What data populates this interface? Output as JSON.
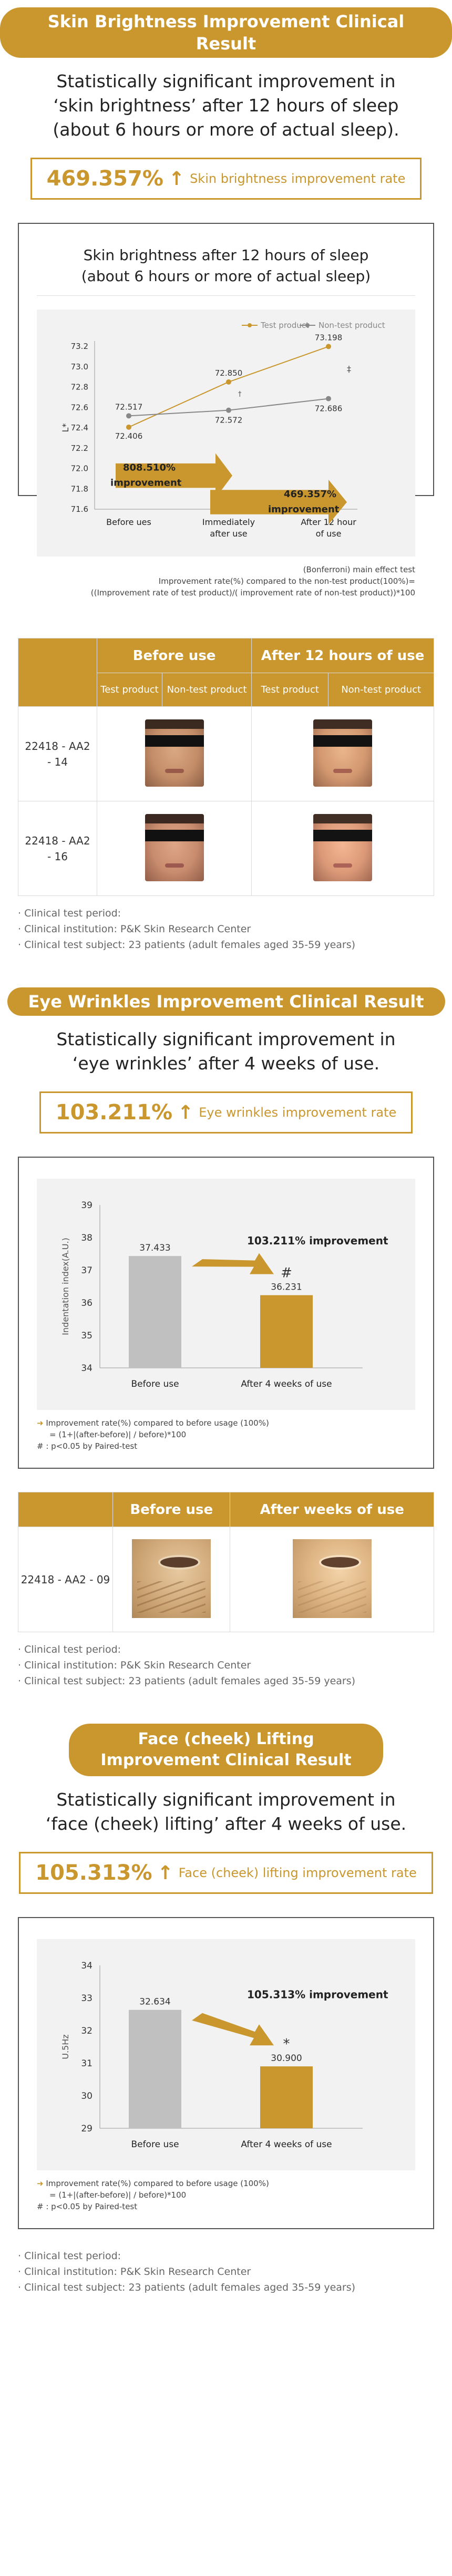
{
  "s1": {
    "title": "Skin Brightness Improvement Clinical Result",
    "lead1": "Statistically significant improvement in",
    "lead2": "‘skin brightness’ after 12 hours of sleep",
    "lead3": "(about 6 hours or more of actual sleep).",
    "rate": "469.357%",
    "rate_arrow": "↑",
    "rate_label": "Skin brightness improvement rate",
    "chart_title1": "Skin brightness after 12 hours of sleep",
    "chart_title2": "(about 6 hours or more of actual sleep)",
    "footnote1": "(Bonferroni) main effect test",
    "footnote2": "Improvement rate(%) compared to the non-test product(100%)=",
    "footnote3": "((Improvement rate of test product)/( improvement rate of non-test product))*100",
    "table": {
      "before": "Before use",
      "after": "After 12 hours of use",
      "sub_test": "Test product",
      "sub_nontest": "Non-test product",
      "rows": [
        {
          "code1": "22418 - AA2",
          "code2": "- 14"
        },
        {
          "code1": "22418 - AA2",
          "code2": "- 16"
        }
      ]
    },
    "bullets": [
      "· Clinical test period:",
      "· Clinical institution: P&K Skin Research Center",
      "· Clinical test subject: 23 patients (adult females aged 35-59 years)"
    ]
  },
  "s2": {
    "title": "Eye Wrinkles Improvement Clinical Result",
    "lead1": "Statistically significant improvement in",
    "lead2": "‘eye wrinkles’ after 4 weeks of use.",
    "rate": "103.211%",
    "rate_arrow": "↑",
    "rate_label": "Eye wrinkles improvement rate",
    "note1": "Improvement rate(%) compared to before usage (100%)",
    "note2": "= (1+|(after-before)| / before)*100",
    "note3": "# : p<0.05 by Paired-test",
    "table": {
      "before": "Before use",
      "after": "After weeks of use",
      "code": "22418 - AA2 - 09"
    },
    "bullets": [
      "· Clinical test period:",
      "· Clinical institution: P&K Skin Research Center",
      "· Clinical test subject: 23 patients (adult females aged 35-59 years)"
    ]
  },
  "s3": {
    "title1": "Face (cheek) Lifting",
    "title2": "Improvement Clinical Result",
    "lead1": "Statistically significant improvement in",
    "lead2": "‘face (cheek) lifting’ after 4 weeks of use.",
    "rate": "105.313%",
    "rate_arrow": "↑",
    "rate_label": "Face (cheek) lifting improvement rate",
    "note1": "Improvement rate(%) compared to before usage (100%)",
    "note2": "= (1+|(after-before)| / before)*100",
    "note3": "# : p<0.05 by Paired-test",
    "bullets": [
      "· Clinical test period:",
      "· Clinical institution: P&K Skin Research Center",
      "· Clinical test subject: 23 patients (adult females aged 35-59 years)"
    ]
  },
  "colors": {
    "gold": "#c9972e",
    "grey_bar": "#c0c0c0",
    "grey_line": "#888888"
  },
  "chart_data": [
    {
      "type": "line",
      "categories": [
        "Before ues",
        "Immediately after use",
        "After 12 hour of use"
      ],
      "series": [
        {
          "name": "Test product",
          "values": [
            72.406,
            72.85,
            73.198
          ]
        },
        {
          "name": "Non-test product",
          "values": [
            72.517,
            72.572,
            72.686
          ]
        }
      ],
      "ylabel": "L*",
      "ylim": [
        71.6,
        73.2
      ],
      "yticks": [
        "73.2",
        "73.0",
        "72.8",
        "72.6",
        "72.4",
        "72.2",
        "72.0",
        "71.8",
        "71.6"
      ],
      "annotations": [
        {
          "value": "808.510%",
          "text": "improvement"
        },
        {
          "value": "469.357%",
          "text": "improvement"
        },
        {
          "value": "‡"
        },
        {
          "value": "†"
        }
      ],
      "legend": "top-right"
    },
    {
      "type": "bar",
      "categories": [
        "Before use",
        "After 4 weeks of use"
      ],
      "values": [
        37.433,
        36.231
      ],
      "ylabel": "Indentation index(A.U.)",
      "ylim": [
        34,
        39
      ],
      "yticks": [
        "39",
        "38",
        "37",
        "36",
        "35",
        "34"
      ],
      "annotation": "103.211%  improvement",
      "marker": "#"
    },
    {
      "type": "bar",
      "categories": [
        "Before use",
        "After 4 weeks of use"
      ],
      "values": [
        32.634,
        30.9
      ],
      "ylabel": "U.5Hz",
      "ylim": [
        29,
        34
      ],
      "yticks": [
        "34",
        "33",
        "32",
        "31",
        "30",
        "29"
      ],
      "annotation": "105.313% improvement",
      "marker": "*"
    }
  ]
}
